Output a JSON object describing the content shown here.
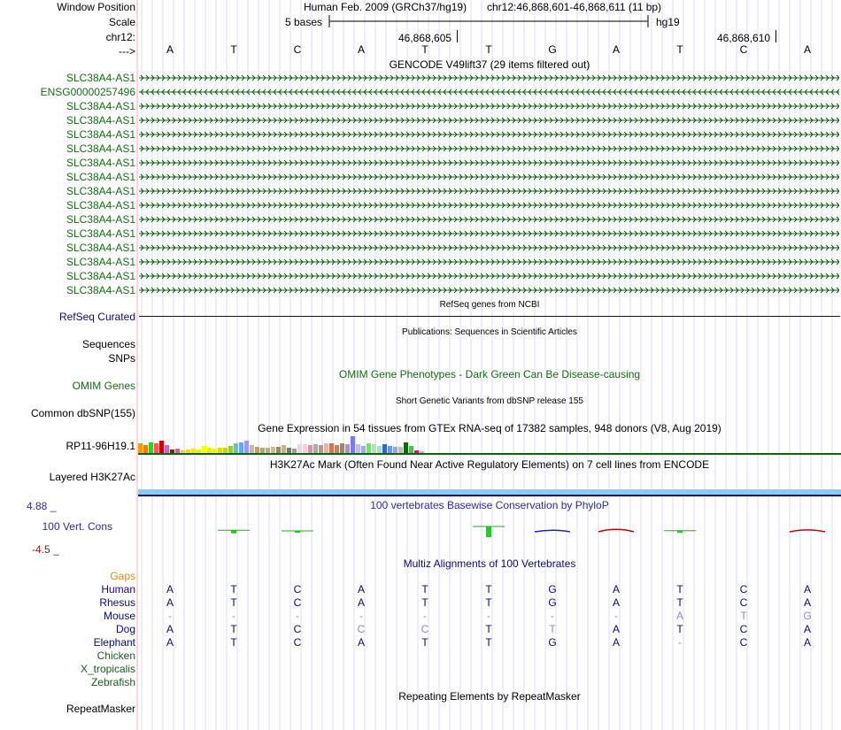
{
  "header": {
    "window_position_label": "Window Position",
    "scale_label": "Scale",
    "chrom_label": "chr12:",
    "strand_label": "--->",
    "assembly_title": "Human Feb. 2009 (GRCh37/hg19)",
    "position_text": "chr12:46,868,601-46,868,611 (11 bp)",
    "scale_text": "5 bases",
    "scale_db": "hg19",
    "coord_left": "46,868,605",
    "coord_right": "46,868,610"
  },
  "sequence": [
    "A",
    "T",
    "C",
    "A",
    "T",
    "T",
    "G",
    "A",
    "T",
    "C",
    "A"
  ],
  "gencode": {
    "title": "GENCODE V49lift37 (29 items filtered out)",
    "items": [
      {
        "name": "SLC38A4-AS1",
        "strand": "+"
      },
      {
        "name": "ENSG00000257496",
        "strand": "-"
      },
      {
        "name": "SLC38A4-AS1",
        "strand": "+"
      },
      {
        "name": "SLC38A4-AS1",
        "strand": "+"
      },
      {
        "name": "SLC38A4-AS1",
        "strand": "+"
      },
      {
        "name": "SLC38A4-AS1",
        "strand": "+"
      },
      {
        "name": "SLC38A4-AS1",
        "strand": "+"
      },
      {
        "name": "SLC38A4-AS1",
        "strand": "+"
      },
      {
        "name": "SLC38A4-AS1",
        "strand": "+"
      },
      {
        "name": "SLC38A4-AS1",
        "strand": "+"
      },
      {
        "name": "SLC38A4-AS1",
        "strand": "+"
      },
      {
        "name": "SLC38A4-AS1",
        "strand": "+"
      },
      {
        "name": "SLC38A4-AS1",
        "strand": "+"
      },
      {
        "name": "SLC38A4-AS1",
        "strand": "+"
      },
      {
        "name": "SLC38A4-AS1",
        "strand": "+"
      },
      {
        "name": "SLC38A4-AS1",
        "strand": "+"
      }
    ]
  },
  "refseq": {
    "title": "RefSeq genes from NCBI",
    "label": "RefSeq Curated"
  },
  "publications": {
    "title": "Publications: Sequences in Scientific Articles",
    "label_line1": "Sequences",
    "label_line2": "SNPs"
  },
  "omim": {
    "title": "OMIM Gene Phenotypes - Dark Green Can Be Disease-causing",
    "label": "OMIM Genes"
  },
  "dbsnp": {
    "title": "Short Genetic Variants from dbSNP release 155",
    "label": "Common dbSNP(155)"
  },
  "gtex": {
    "title": "Gene Expression in 54 tissues from GTEx RNA-seq of 17382 samples, 948 donors (V8, Aug 2019)",
    "label": "RP11-96H19.1",
    "tissue_levels": [
      0.55,
      0.45,
      0.6,
      0.55,
      0.7,
      0.45,
      0.2,
      0.25,
      0.15,
      0.2,
      0.25,
      0.2,
      0.4,
      0.3,
      0.25,
      0.3,
      0.3,
      0.4,
      0.55,
      0.6,
      0.7,
      0.45,
      0.35,
      0.3,
      0.3,
      0.35,
      0.35,
      0.45,
      0.3,
      0.25,
      0.5,
      0.5,
      0.45,
      0.5,
      0.45,
      0.55,
      0.55,
      0.45,
      0.55,
      0.5,
      0.95,
      0.5,
      0.4,
      0.55,
      0.5,
      0.4,
      0.5,
      0.4,
      0.35,
      0.35,
      0.6,
      0.4,
      0.15,
      0.1
    ],
    "tissue_colors": [
      "#ff9900",
      "#ff7a00",
      "#33cc33",
      "#ff5555",
      "#cc0000",
      "#cc66cc",
      "#663300",
      "#cc6699",
      "#ffcc33",
      "#ffcc33",
      "#eeee00",
      "#eeee00",
      "#ffff00",
      "#eeee00",
      "#ffee00",
      "#dddd00",
      "#cccc33",
      "#99cc33",
      "#77bbbb",
      "#66aaee",
      "#9999ff",
      "#bbbbbb",
      "#cc9966",
      "#aaaa77",
      "#bbaa88",
      "#ccbb99",
      "#998866",
      "#c9b38a",
      "#777777",
      "#aa9999",
      "#dddddd",
      "#ffccdd",
      "#cc99aa",
      "#aaaaaa",
      "#bb9988",
      "#ddbbaa",
      "#cc7755",
      "#bb8866",
      "#998877",
      "#aa99aa",
      "#7777ff",
      "#bbbbff",
      "#aaaadd",
      "#77dd77",
      "#bbddbb",
      "#aaddcc",
      "#3366cc",
      "#6699ff",
      "#99aacc",
      "#bbbbbb",
      "#116611",
      "#55bb55",
      "#ee0088",
      "#ff99cc"
    ]
  },
  "h3k27ac": {
    "title": "H3K27Ac Mark (Often Found Near Active Regulatory Elements) on 7 cell lines from ENCODE",
    "label": "Layered H3K27Ac"
  },
  "conservation": {
    "title": "100 vertebrates Basewise Conservation by PhyloP",
    "label": "100 Vert. Cons",
    "max_text": "4.88 _",
    "min_text": "-4.5 _",
    "phylop_scores": [
      0.0,
      0.6,
      0.15,
      0.0,
      0.0,
      2.0,
      -0.6,
      -0.9,
      0.4,
      0.0,
      -0.7
    ]
  },
  "multiz": {
    "title": "Multiz Alignments of 100 Vertebrates",
    "gaps_label": "Gaps",
    "species": [
      {
        "name": "Human",
        "bases": [
          "A",
          "T",
          "C",
          "A",
          "T",
          "T",
          "G",
          "A",
          "T",
          "C",
          "A"
        ]
      },
      {
        "name": "Rhesus",
        "bases": [
          "A",
          "T",
          "C",
          "A",
          "T",
          "T",
          "G",
          "A",
          "T",
          "C",
          "A"
        ]
      },
      {
        "name": "Mouse",
        "bases": [
          "-",
          "-",
          "-",
          "-",
          "-",
          "-",
          "-",
          "-",
          "A",
          "T",
          "G"
        ]
      },
      {
        "name": "Dog",
        "bases": [
          "A",
          "T",
          "C",
          "C",
          "C",
          "T",
          "T",
          "A",
          "T",
          "C",
          "A"
        ]
      },
      {
        "name": "Elephant",
        "bases": [
          "A",
          "T",
          "C",
          "A",
          "T",
          "T",
          "G",
          "A",
          "-",
          "C",
          "A"
        ]
      },
      {
        "name": "Chicken",
        "bases": []
      },
      {
        "name": "X_tropicalis",
        "bases": []
      },
      {
        "name": "Zebrafish",
        "bases": []
      }
    ]
  },
  "repeatmasker": {
    "title": "Repeating Elements by RepeatMasker",
    "label": "RepeatMasker"
  },
  "colors": {
    "label_green": "#156b15",
    "label_navy": "#0b0b72",
    "grid": "#dcdcf0",
    "left_border": "#f4b0b0",
    "h3k27ac_bar": "#87cef0",
    "gaps_orange": "#e58a12",
    "phylop_green": "#22cc22",
    "phylop_red": "#cc0000",
    "phylop_blue": "#2222cc"
  }
}
